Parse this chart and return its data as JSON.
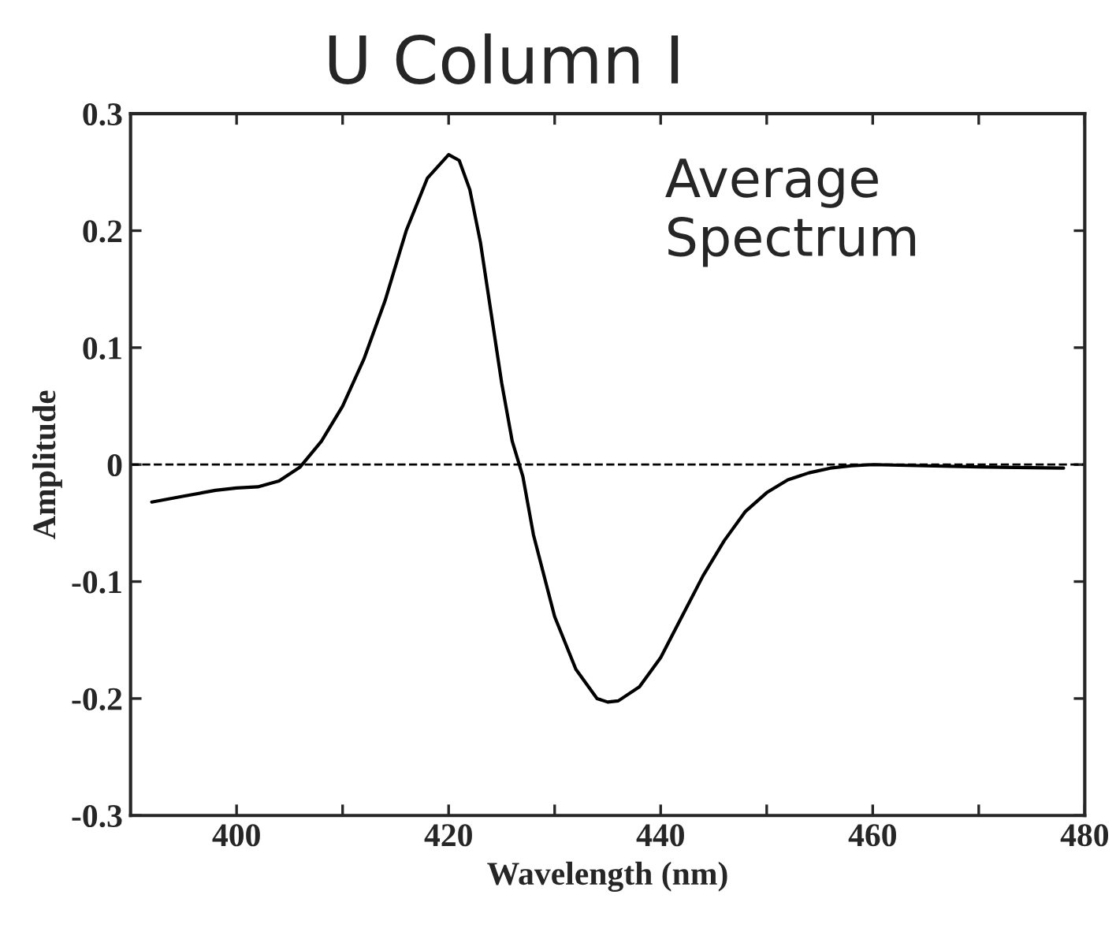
{
  "chart_data": {
    "type": "line",
    "title": "U Column I",
    "xlabel": "Wavelength (nm)",
    "ylabel": "Amplitude",
    "annotations": [
      "Average Spectrum"
    ],
    "x": [
      392,
      395,
      398,
      400,
      402,
      404,
      406,
      408,
      410,
      412,
      414,
      416,
      418,
      420,
      421,
      422,
      423,
      424,
      425,
      426,
      427,
      428,
      430,
      432,
      434,
      435,
      436,
      438,
      440,
      442,
      444,
      446,
      448,
      450,
      452,
      454,
      456,
      458,
      460,
      465,
      470,
      478
    ],
    "series": [
      {
        "color": "#000000",
        "values": [
          -0.032,
          -0.027,
          -0.022,
          -0.02,
          -0.019,
          -0.014,
          -0.002,
          0.02,
          0.05,
          0.09,
          0.14,
          0.2,
          0.245,
          0.265,
          0.26,
          0.235,
          0.19,
          0.13,
          0.07,
          0.02,
          -0.01,
          -0.06,
          -0.13,
          -0.175,
          -0.2,
          -0.203,
          -0.202,
          -0.19,
          -0.165,
          -0.13,
          -0.095,
          -0.065,
          -0.04,
          -0.024,
          -0.013,
          -0.007,
          -0.003,
          -0.001,
          0,
          -0.001,
          -0.002,
          -0.003
        ]
      }
    ],
    "ref_lines": [
      {
        "axis": "y",
        "value": 0,
        "line_style": "dashed",
        "color": "#000000"
      }
    ],
    "xlim": [
      390,
      480
    ],
    "xticks": [
      400,
      {
        "value": 410,
        "label": null
      },
      420,
      {
        "value": 430,
        "label": null
      },
      440,
      {
        "value": 450,
        "label": null
      },
      460,
      {
        "value": 470,
        "label": null
      },
      480
    ],
    "ylim": [
      -0.3,
      0.3
    ],
    "yticks": [
      -0.3,
      -0.2,
      -0.1,
      0,
      0.1,
      0.2,
      0.3
    ],
    "grid": false,
    "legend": false,
    "marker": "none",
    "line_style": "solid"
  }
}
